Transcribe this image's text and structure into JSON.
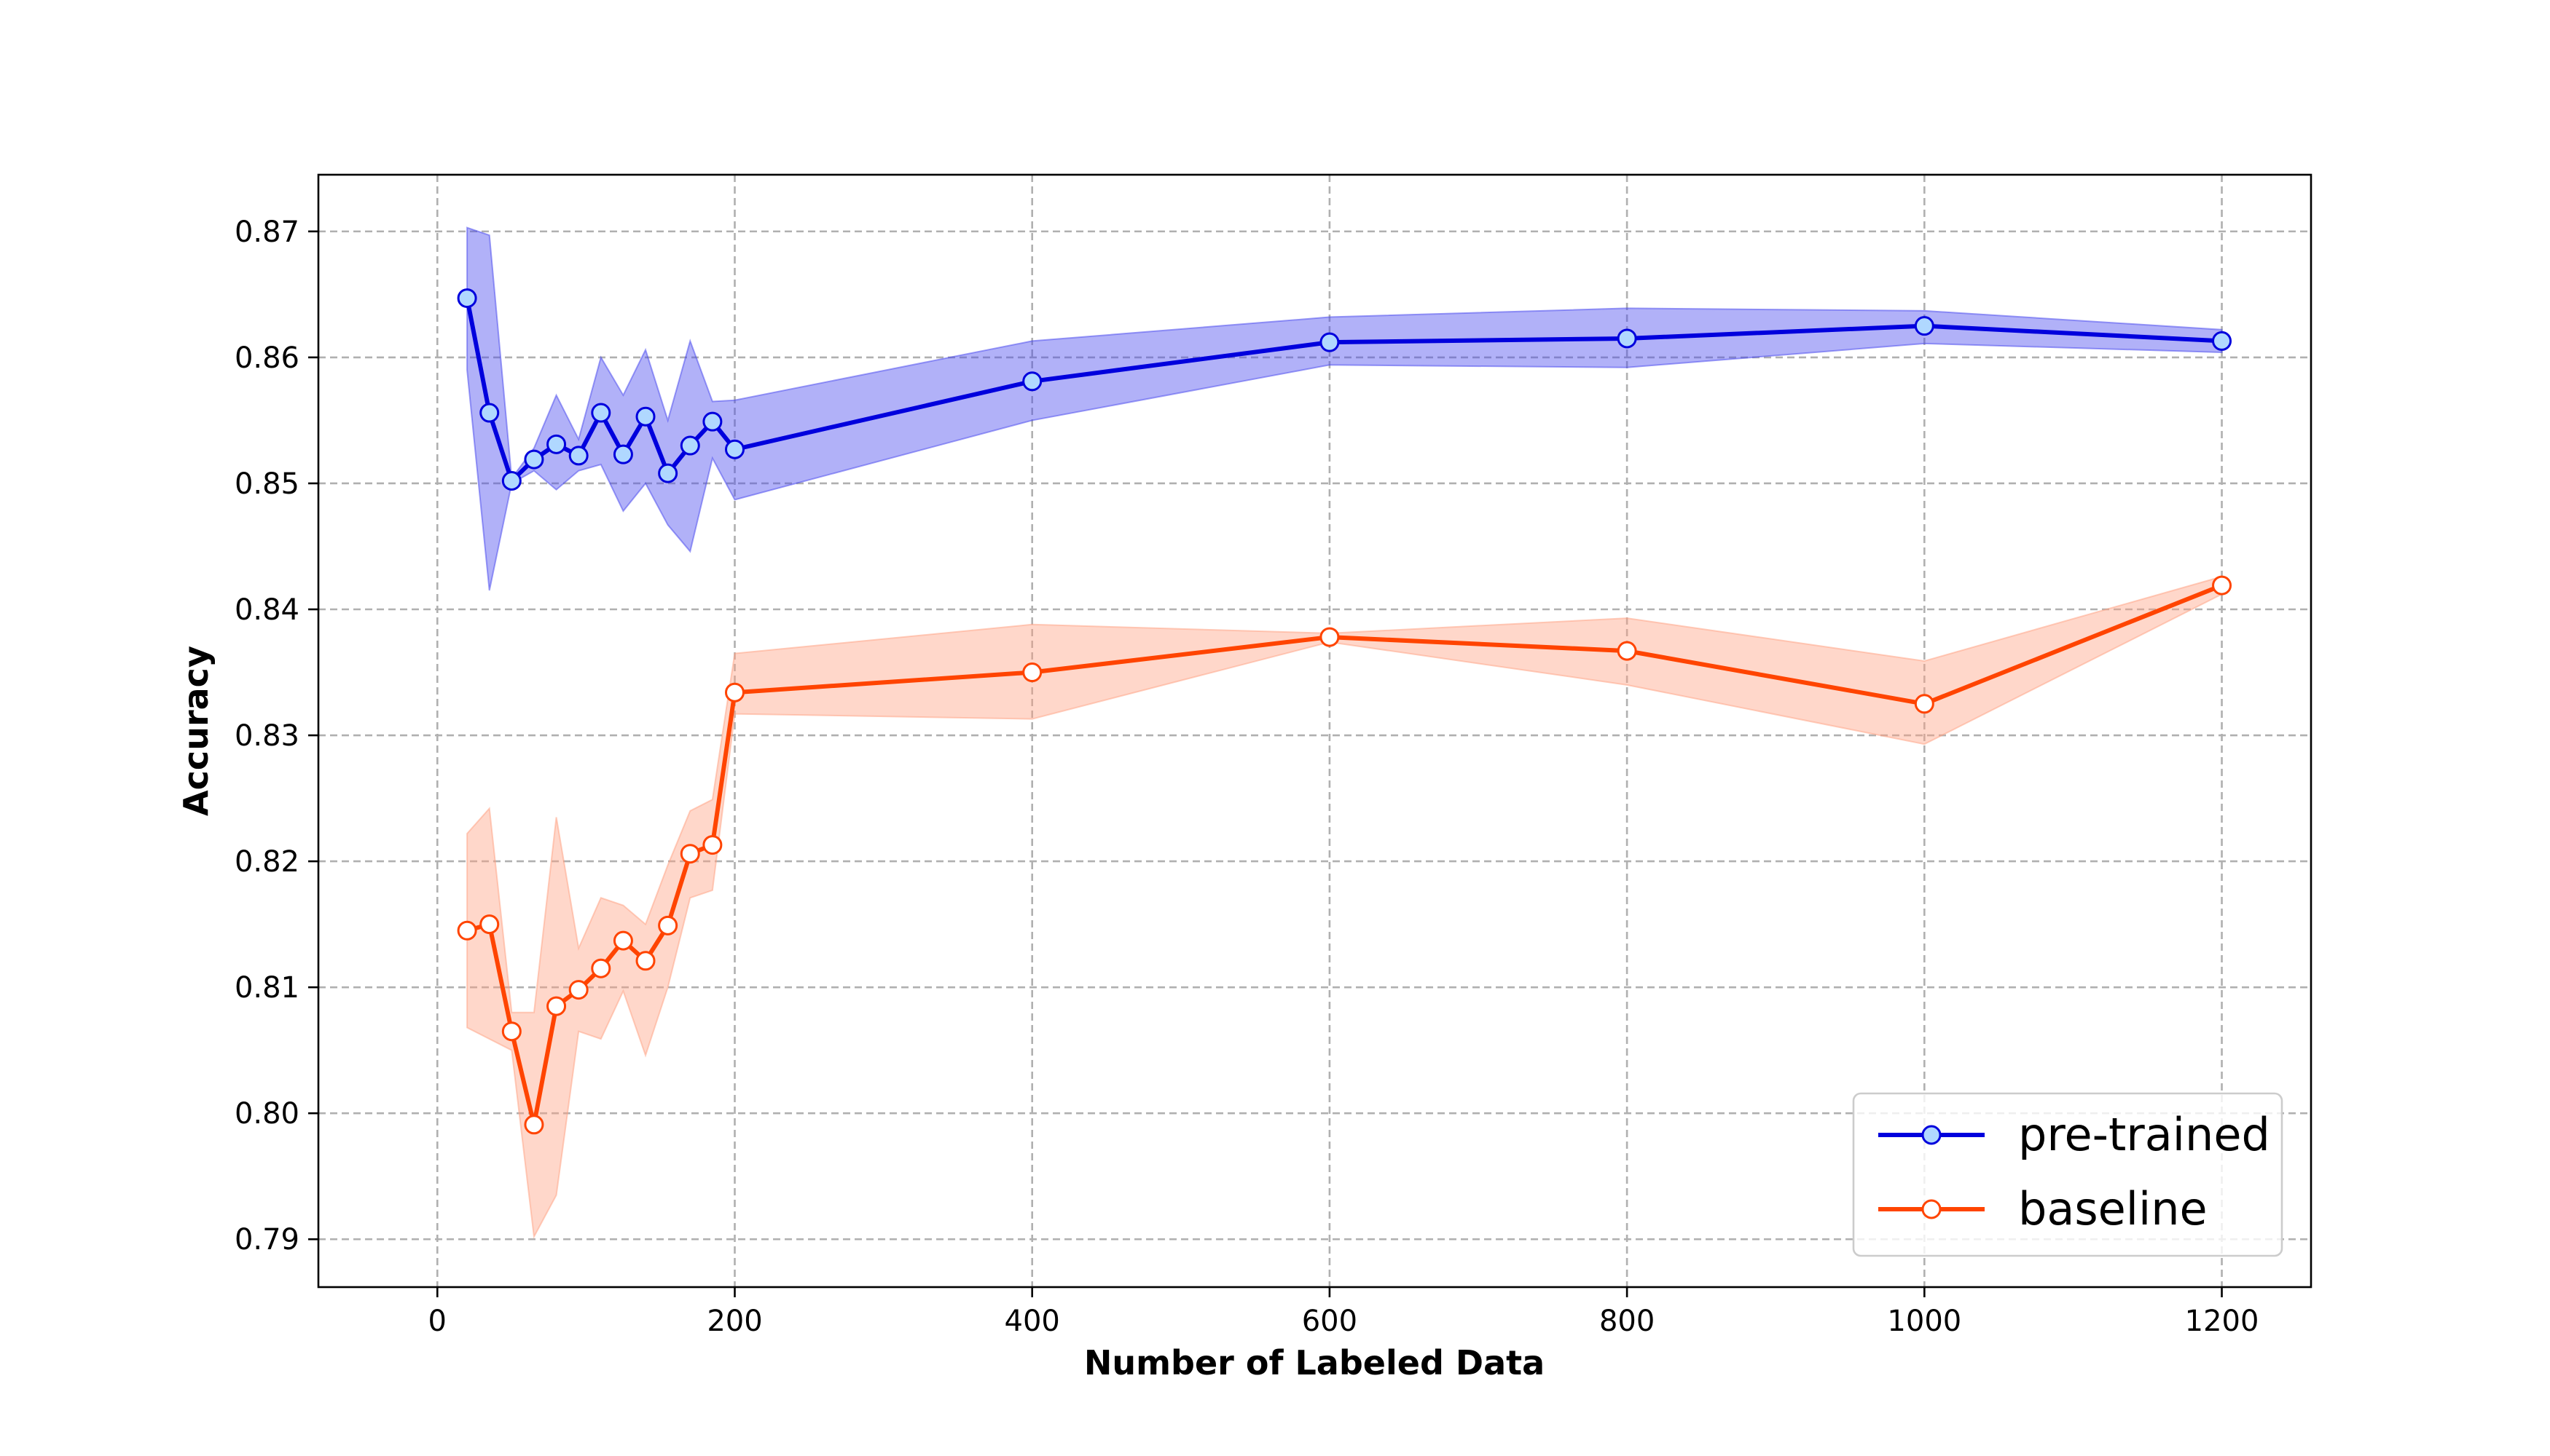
{
  "chart_data": {
    "type": "line",
    "xlabel": "Number of Labeled Data",
    "ylabel": "Accuracy",
    "xlim": [
      -80,
      1260
    ],
    "ylim": [
      0.7862,
      0.8745
    ],
    "xticks": [
      0,
      200,
      400,
      600,
      800,
      1000,
      1200
    ],
    "yticks": [
      0.79,
      0.8,
      0.81,
      0.82,
      0.83,
      0.84,
      0.85,
      0.86,
      0.87
    ],
    "ytick_labels": [
      "0.79",
      "0.80",
      "0.81",
      "0.82",
      "0.83",
      "0.84",
      "0.85",
      "0.86",
      "0.87"
    ],
    "grid": true,
    "legend_position": "bottom-right",
    "x": [
      20,
      35,
      50,
      65,
      80,
      95,
      110,
      125,
      140,
      155,
      170,
      185,
      200,
      400,
      600,
      800,
      1000,
      1200
    ],
    "series": [
      {
        "name": "pre-trained",
        "color": "#0000dd",
        "band_color": "#4444ee",
        "values": [
          0.8647,
          0.8556,
          0.8502,
          0.8519,
          0.8531,
          0.8522,
          0.8556,
          0.8523,
          0.8553,
          0.8508,
          0.853,
          0.8549,
          0.8527,
          0.8581,
          0.8612,
          0.8615,
          0.8625,
          0.8613
        ],
        "lower": [
          0.859,
          0.8415,
          0.85,
          0.851,
          0.8495,
          0.851,
          0.8515,
          0.8478,
          0.85,
          0.8467,
          0.8446,
          0.852,
          0.8487,
          0.855,
          0.8594,
          0.8592,
          0.8611,
          0.8604
        ],
        "upper": [
          0.8703,
          0.8697,
          0.8504,
          0.8528,
          0.857,
          0.8535,
          0.86,
          0.857,
          0.8606,
          0.855,
          0.8613,
          0.8565,
          0.8566,
          0.8613,
          0.8632,
          0.8639,
          0.8637,
          0.8622
        ]
      },
      {
        "name": "baseline",
        "color": "#ff4400",
        "band_color": "#ffa080",
        "values": [
          0.8145,
          0.815,
          0.8065,
          0.7991,
          0.8085,
          0.8098,
          0.8115,
          0.8137,
          0.8121,
          0.8149,
          0.8206,
          0.8213,
          0.8334,
          0.835,
          0.8378,
          0.8367,
          0.8325,
          0.8419
        ],
        "lower": [
          0.8068,
          0.8059,
          0.805,
          0.7902,
          0.7935,
          0.8065,
          0.8059,
          0.8097,
          0.8046,
          0.81,
          0.8171,
          0.8177,
          0.8317,
          0.8313,
          0.8374,
          0.834,
          0.8293,
          0.8412
        ],
        "upper": [
          0.8222,
          0.8242,
          0.808,
          0.808,
          0.8235,
          0.8131,
          0.8171,
          0.8165,
          0.815,
          0.8197,
          0.824,
          0.8249,
          0.8365,
          0.8388,
          0.8381,
          0.8393,
          0.8359,
          0.8426
        ]
      }
    ]
  }
}
